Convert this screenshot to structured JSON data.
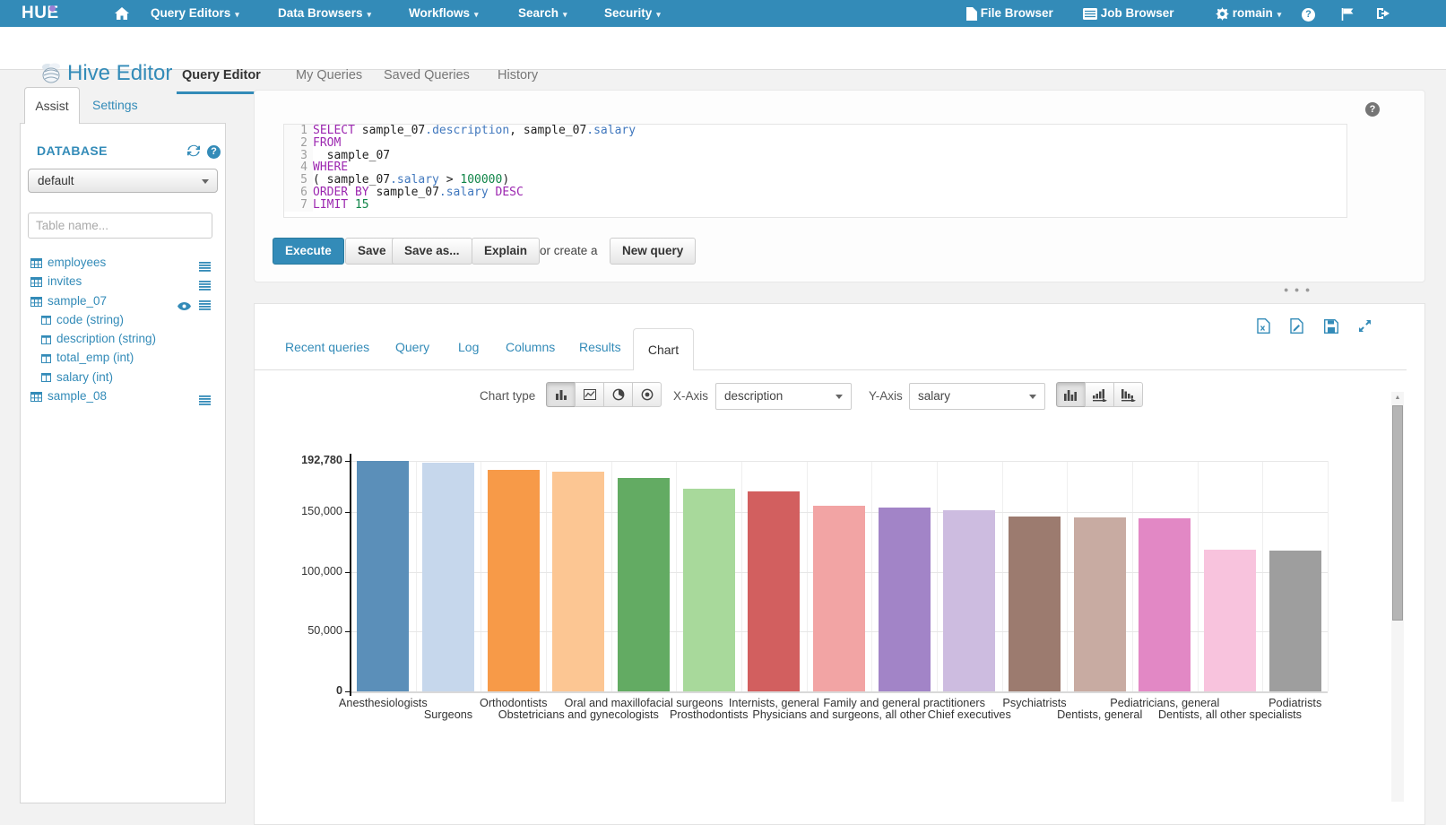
{
  "colors": {
    "accent": "#338bb8",
    "navbar_bg": "#338bb8",
    "code_keyword": "#9c27b0",
    "code_attribute": "#4178be",
    "code_number": "#108548"
  },
  "topnav": {
    "logo_text": "HUE",
    "menus": [
      "Query Editors",
      "Data Browsers",
      "Workflows",
      "Search",
      "Security"
    ],
    "file_browser": "File Browser",
    "job_browser": "Job Browser",
    "username": "romain"
  },
  "app_header": {
    "title": "Hive Editor",
    "tabs": [
      "Query Editor",
      "My Queries",
      "Saved Queries",
      "History"
    ],
    "active_tab": "Query Editor"
  },
  "assist": {
    "tab_assist": "Assist",
    "tab_settings": "Settings",
    "database_label": "DATABASE",
    "database_value": "default",
    "table_placeholder": "Table name...",
    "tables": [
      {
        "name": "employees",
        "has_menu": true,
        "has_eye": false,
        "columns": []
      },
      {
        "name": "invites",
        "has_menu": true,
        "has_eye": false,
        "columns": []
      },
      {
        "name": "sample_07",
        "has_menu": true,
        "has_eye": true,
        "columns": [
          "code (string)",
          "description (string)",
          "total_emp (int)",
          "salary (int)"
        ]
      },
      {
        "name": "sample_08",
        "has_menu": true,
        "has_eye": false,
        "columns": []
      }
    ]
  },
  "editor": {
    "lines": [
      [
        [
          "kw",
          "SELECT"
        ],
        [
          "pl",
          " sample_07"
        ],
        [
          "at",
          ".description"
        ],
        [
          "pl",
          ", sample_07"
        ],
        [
          "at",
          ".salary"
        ]
      ],
      [
        [
          "kw",
          "FROM"
        ]
      ],
      [
        [
          "pl",
          "  sample_07"
        ]
      ],
      [
        [
          "kw",
          "WHERE"
        ]
      ],
      [
        [
          "pl",
          "( sample_07"
        ],
        [
          "at",
          ".salary"
        ],
        [
          "pl",
          " > "
        ],
        [
          "nm",
          "100000"
        ],
        [
          "pl",
          ")"
        ]
      ],
      [
        [
          "kw",
          "ORDER BY"
        ],
        [
          "pl",
          " sample_07"
        ],
        [
          "at",
          ".salary"
        ],
        [
          "pl",
          " "
        ],
        [
          "kw",
          "DESC"
        ]
      ],
      [
        [
          "kw",
          "LIMIT"
        ],
        [
          "pl",
          " "
        ],
        [
          "nm",
          "15"
        ]
      ]
    ]
  },
  "actions": {
    "execute": "Execute",
    "save": "Save",
    "save_as": "Save as...",
    "explain": "Explain",
    "or_create": "or create a",
    "new_query": "New query"
  },
  "results": {
    "tabs": [
      "Recent queries",
      "Query",
      "Log",
      "Columns",
      "Results",
      "Chart"
    ],
    "active_tab": "Chart",
    "controls": {
      "chart_type_label": "Chart type",
      "x_axis_label": "X-Axis",
      "x_axis_value": "description",
      "y_axis_label": "Y-Axis",
      "y_axis_value": "salary"
    }
  },
  "chart_data": {
    "type": "bar",
    "title": "",
    "xlabel": "description",
    "ylabel": "salary",
    "ylim": [
      0,
      192780
    ],
    "yticks": [
      0,
      50000,
      100000,
      150000,
      192780
    ],
    "grid": true,
    "legend": "none",
    "categories": [
      "Anesthesiologists",
      "Surgeons",
      "Orthodontists",
      "Obstetricians and gynecologists",
      "Oral and maxillofacial surgeons",
      "Prosthodontists",
      "Internists, general",
      "Physicians and surgeons, all other",
      "Family and general practitioners",
      "Chief executives",
      "Psychiatrists",
      "Dentists, general",
      "Pediatricians, general",
      "Dentists, all other specialists",
      "Podiatrists"
    ],
    "values": [
      192780,
      191410,
      185340,
      183600,
      178440,
      169810,
      167270,
      155150,
      153640,
      151370,
      146150,
      145430,
      144440,
      118780,
      118030
    ],
    "bar_colors": [
      "#5b8fb9",
      "#c6d7ec",
      "#f79a48",
      "#fcc693",
      "#63ab63",
      "#a8d99b",
      "#d25f5f",
      "#f2a4a4",
      "#a284c7",
      "#cdbce0",
      "#9c7b6f",
      "#c8aba2",
      "#e288c5",
      "#f8c3dd",
      "#9e9e9e"
    ]
  }
}
